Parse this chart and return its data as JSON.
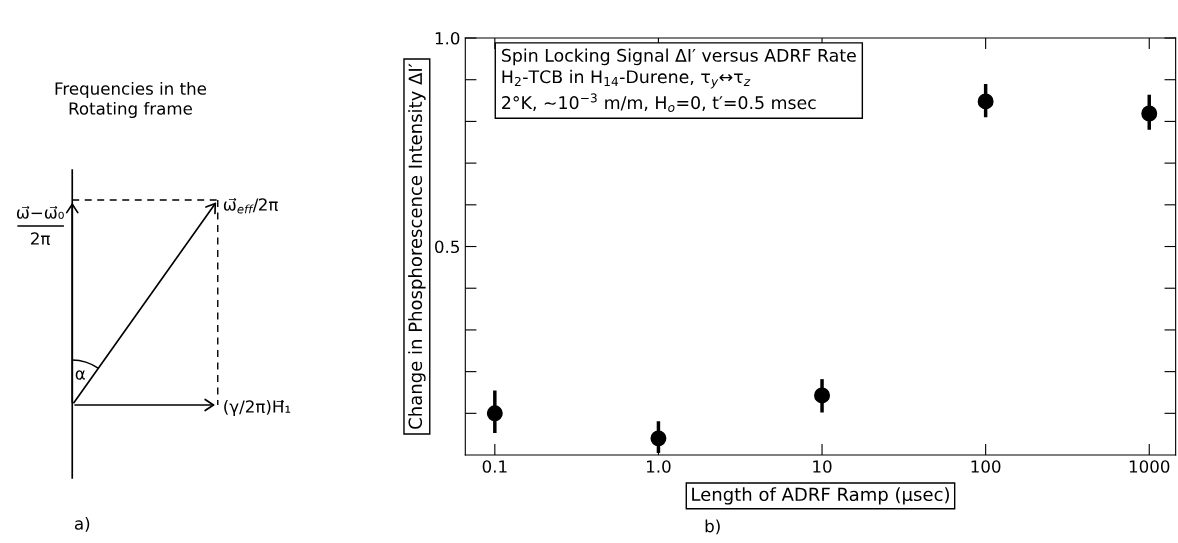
{
  "chart_data": [
    {
      "type": "other",
      "title": "Frequencies in the\nRotating frame",
      "annotations": [
        "ω⃗−ω⃗₀",
        "2π",
        "ω⃗$_{eff}$/2π",
        "α",
        "(γ/2π)H⃗₁",
        "a)"
      ]
    },
    {
      "type": "scatter",
      "title": "Spin Locking Signal ΔI′ versus ADRF Rate",
      "subtitle": "H$_{2}$-TCB in H$_{14}$-Durene, τ$_{y}$↔τ$_{z}$\n2°K, ~10$^{−3}$ m/m, H$_{o}$=0, t′=0.5 msec",
      "xlabel": "Length of ADRF Ramp (μsec)",
      "ylabel": "Change in Phosphorescence Intensity ΔI′",
      "x": [
        0.1,
        1,
        10,
        100,
        1000
      ],
      "series": [
        {
          "color": "#000000",
          "values": [
            0.1,
            0.04,
            0.143,
            0.848,
            0.819
          ],
          "errors": [
            [
              0.053,
              0.155
            ],
            [
              0.005,
              0.081
            ],
            [
              0.102,
              0.182
            ],
            [
              0.81,
              0.89
            ],
            [
              0.78,
              0.864
            ]
          ]
        }
      ],
      "log": "x",
      "xlim": [
        0.066,
        1450
      ],
      "xticks": [
        0.1,
        {
          "value": 1,
          "label": "1.0"
        },
        10,
        100,
        1000
      ],
      "ylim": [
        0,
        1.0
      ],
      "yticks": [
        {
          "value": 0.1,
          "label": null
        },
        {
          "value": 0.2,
          "label": null
        },
        {
          "value": 0.3,
          "label": null
        },
        {
          "value": 0.4,
          "label": null
        },
        0.5,
        {
          "value": 0.6,
          "label": null
        },
        {
          "value": 0.7,
          "label": null
        },
        {
          "value": 0.8,
          "label": null
        },
        {
          "value": 0.9,
          "label": null
        },
        {
          "value": 1.0,
          "label": "1.0"
        }
      ],
      "marker": "circle",
      "grid": false,
      "annotations": [
        "b)"
      ]
    }
  ]
}
